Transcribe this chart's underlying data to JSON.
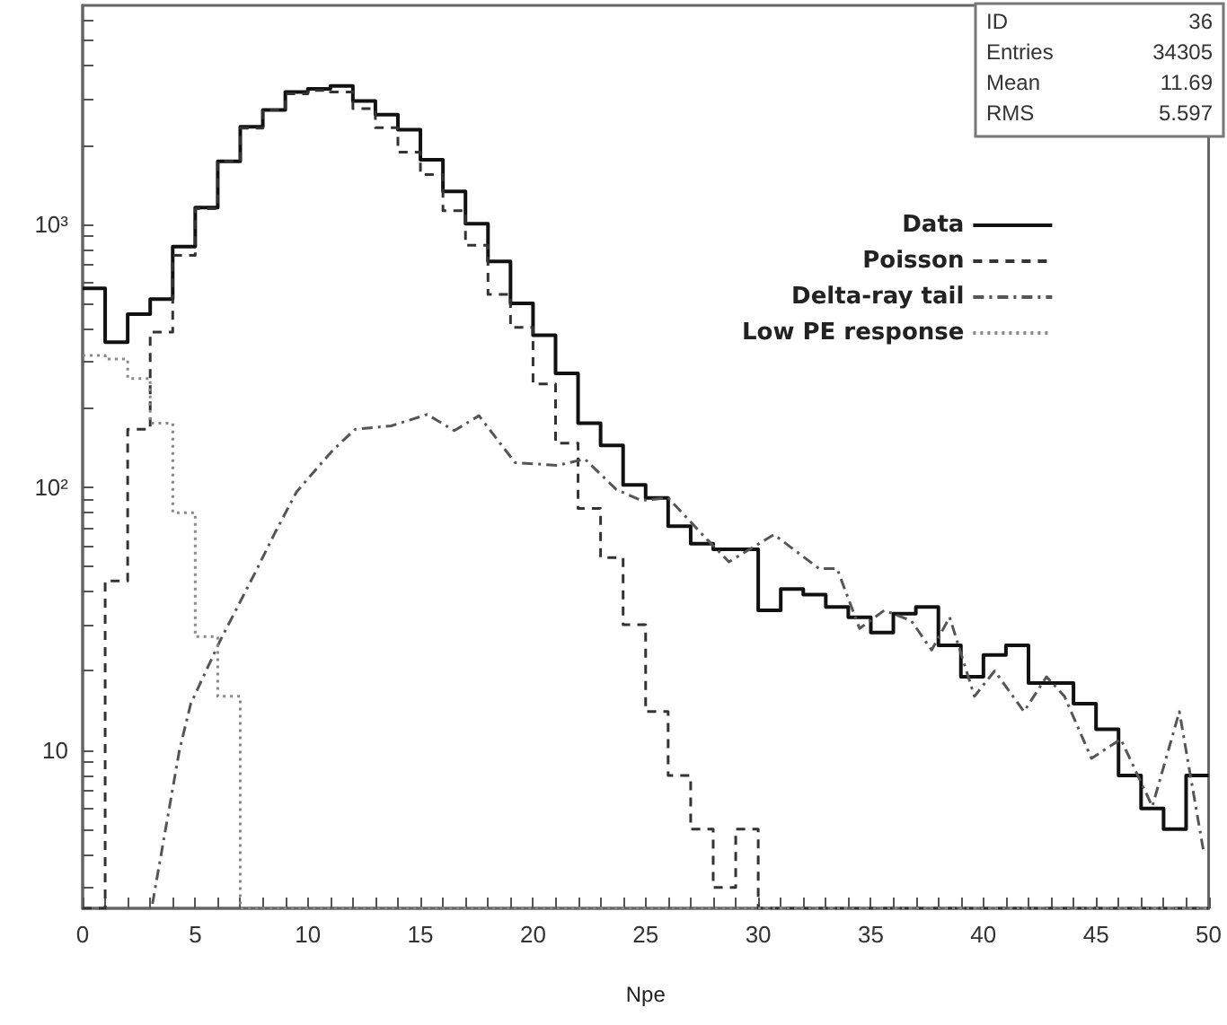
{
  "chart_data": {
    "type": "histogram",
    "xlabel": "Npe",
    "bins": [
      0,
      1,
      2,
      3,
      4,
      5,
      6,
      7,
      8,
      9,
      10,
      11,
      12,
      13,
      14,
      15,
      16,
      17,
      18,
      19,
      20,
      21,
      22,
      23,
      24,
      25,
      26,
      27,
      28,
      29,
      30,
      31,
      32,
      33,
      34,
      35,
      36,
      37,
      38,
      39,
      40,
      41,
      42,
      43,
      44,
      45,
      46,
      47,
      48,
      49,
      50
    ],
    "series": [
      {
        "name": "Data",
        "color": "#111111",
        "line_style": "solid",
        "values": [
          570,
          356,
          455,
          519,
          822,
          1157,
          1734,
          2350,
          2720,
          3185,
          3275,
          3360,
          2945,
          2610,
          2290,
          1760,
          1334,
          1004,
          722,
          500,
          378,
          271,
          175,
          144,
          102,
          91,
          71,
          61,
          58,
          58,
          34,
          41,
          39,
          35,
          32,
          28,
          33,
          35,
          25,
          19,
          23,
          25,
          18,
          18,
          15,
          12,
          8,
          6,
          5,
          8
        ]
      },
      {
        "name": "Poisson",
        "color": "#333333",
        "line_style": "dashed",
        "values": [
          null,
          44,
          166,
          389,
          761,
          1145,
          1734,
          2320,
          2720,
          3135,
          3230,
          3185,
          2755,
          2330,
          1880,
          1545,
          1127,
          832,
          541,
          405,
          247,
          147,
          83,
          54,
          30,
          14,
          8,
          5,
          3,
          5,
          null,
          null,
          null,
          null,
          null,
          null,
          null,
          null,
          null,
          null,
          null,
          null,
          null,
          null,
          null,
          null,
          null,
          null,
          null,
          null
        ]
      },
      {
        "name": "Delta-ray tail",
        "type": "line",
        "color": "#555555",
        "line_style": "dashdot",
        "x": [
          3.1,
          4.3,
          4.8,
          6.1,
          7.7,
          8.5,
          9.5,
          11.1,
          12.1,
          13.7,
          15.3,
          16.5,
          17.6,
          19.2,
          21.1,
          22.3,
          23.7,
          24.8,
          26,
          27.9,
          28.7,
          30.7,
          32.7,
          33.5,
          34.5,
          35.6,
          36.8,
          37.7,
          38.5,
          39.6,
          40.5,
          41.8,
          42.8,
          43.6,
          44.8,
          46.1,
          47.5,
          48.7,
          49.8
        ],
        "values": [
          2.6,
          10,
          15,
          26,
          48,
          66,
          96,
          138,
          166,
          171,
          189,
          164,
          187,
          124,
          121,
          128,
          98,
          89,
          91,
          61,
          52,
          66,
          49,
          49,
          29,
          34,
          31,
          24,
          32,
          16,
          20,
          14,
          19,
          16,
          9.3,
          11,
          6.1,
          14,
          4
        ]
      },
      {
        "name": "Low PE response",
        "color": "#888888",
        "line_style": "dotted",
        "values": [
          317,
          307,
          259,
          175,
          80,
          27,
          16,
          null,
          null,
          null,
          null,
          null,
          null,
          null,
          null,
          null,
          null,
          null,
          null,
          null,
          null,
          null,
          null,
          null,
          null,
          null,
          null,
          null,
          null,
          null,
          null,
          null,
          null,
          null,
          null,
          null,
          null,
          null,
          null,
          null,
          null,
          null,
          null,
          null,
          null,
          null,
          null,
          null,
          null,
          null
        ]
      }
    ],
    "log": "y",
    "xlim": [
      0,
      50
    ],
    "ylim": [
      2.5,
      6800
    ],
    "xticks": [
      0,
      {
        "value": 1,
        "label": null
      },
      {
        "value": 2,
        "label": null
      },
      {
        "value": 3,
        "label": null
      },
      {
        "value": 4,
        "label": null
      },
      5,
      {
        "value": 6,
        "label": null
      },
      {
        "value": 7,
        "label": null
      },
      {
        "value": 8,
        "label": null
      },
      {
        "value": 9,
        "label": null
      },
      10,
      {
        "value": 11,
        "label": null
      },
      {
        "value": 12,
        "label": null
      },
      {
        "value": 13,
        "label": null
      },
      {
        "value": 14,
        "label": null
      },
      15,
      {
        "value": 16,
        "label": null
      },
      {
        "value": 17,
        "label": null
      },
      {
        "value": 18,
        "label": null
      },
      {
        "value": 19,
        "label": null
      },
      20,
      {
        "value": 21,
        "label": null
      },
      {
        "value": 22,
        "label": null
      },
      {
        "value": 23,
        "label": null
      },
      {
        "value": 24,
        "label": null
      },
      25,
      {
        "value": 26,
        "label": null
      },
      {
        "value": 27,
        "label": null
      },
      {
        "value": 28,
        "label": null
      },
      {
        "value": 29,
        "label": null
      },
      30,
      {
        "value": 31,
        "label": null
      },
      {
        "value": 32,
        "label": null
      },
      {
        "value": 33,
        "label": null
      },
      {
        "value": 34,
        "label": null
      },
      35,
      {
        "value": 36,
        "label": null
      },
      {
        "value": 37,
        "label": null
      },
      {
        "value": 38,
        "label": null
      },
      {
        "value": 39,
        "label": null
      },
      40,
      {
        "value": 41,
        "label": null
      },
      {
        "value": 42,
        "label": null
      },
      {
        "value": 43,
        "label": null
      },
      {
        "value": 44,
        "label": null
      },
      45,
      {
        "value": 46,
        "label": null
      },
      {
        "value": 47,
        "label": null
      },
      {
        "value": 48,
        "label": null
      },
      {
        "value": 49,
        "label": null
      },
      50
    ],
    "yticks": [
      {
        "value": 3,
        "label": null
      },
      {
        "value": 4,
        "label": null
      },
      {
        "value": 5,
        "label": null
      },
      {
        "value": 6,
        "label": null
      },
      {
        "value": 7,
        "label": null
      },
      {
        "value": 8,
        "label": null
      },
      {
        "value": 9,
        "label": null
      },
      10,
      {
        "value": 20,
        "label": null
      },
      {
        "value": 30,
        "label": null
      },
      {
        "value": 40,
        "label": null
      },
      {
        "value": 50,
        "label": null
      },
      {
        "value": 60,
        "label": null
      },
      {
        "value": 70,
        "label": null
      },
      {
        "value": 80,
        "label": null
      },
      {
        "value": 90,
        "label": null
      },
      {
        "value": 100,
        "label": "10²"
      },
      {
        "value": 200,
        "label": null
      },
      {
        "value": 300,
        "label": null
      },
      {
        "value": 400,
        "label": null
      },
      {
        "value": 500,
        "label": null
      },
      {
        "value": 600,
        "label": null
      },
      {
        "value": 700,
        "label": null
      },
      {
        "value": 800,
        "label": null
      },
      {
        "value": 900,
        "label": null
      },
      {
        "value": 1000,
        "label": "10³"
      },
      {
        "value": 2000,
        "label": null
      },
      {
        "value": 3000,
        "label": null
      },
      {
        "value": 4000,
        "label": null
      },
      {
        "value": 5000,
        "label": null
      },
      {
        "value": 6000,
        "label": null
      }
    ],
    "legend": "top right",
    "grid": false,
    "marker": "none",
    "annotations": [
      "ID 36",
      "Entries 34305",
      "Mean 11.69",
      "RMS 5.597"
    ]
  }
}
